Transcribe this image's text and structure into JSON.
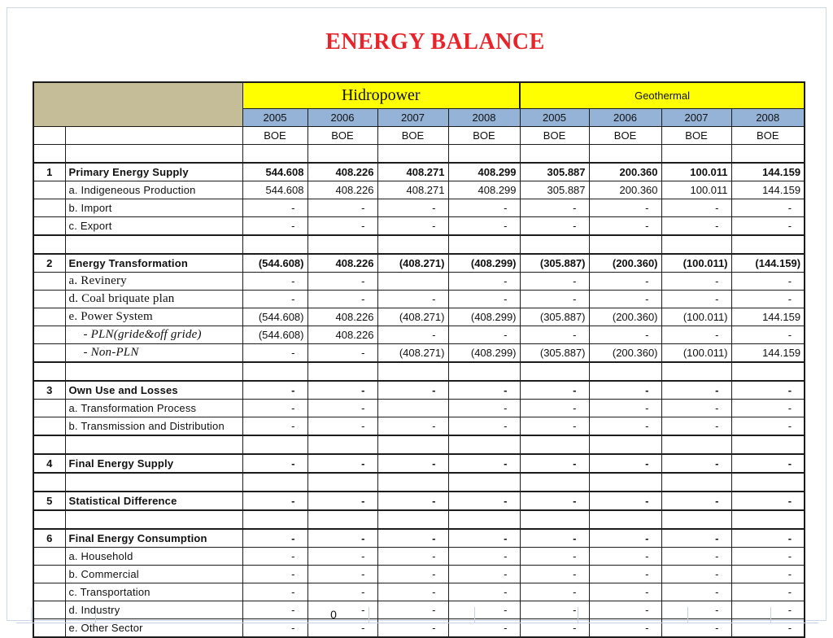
{
  "page": {
    "title": "ENERGY BALANCE"
  },
  "colors": {
    "title_red": "#e8232a",
    "band_yellow": "#ffff00",
    "band_blue": "#95b3d7",
    "corner_tan": "#c4bd97",
    "grid_light": "#c7d3e4"
  },
  "table": {
    "groups": [
      {
        "name": "Hidropower"
      },
      {
        "name": "Geothermal"
      }
    ],
    "years": [
      "2005",
      "2006",
      "2007",
      "2008",
      "2005",
      "2006",
      "2007",
      "2008"
    ],
    "units": [
      "BOE",
      "BOE",
      "BOE",
      "BOE",
      "BOE",
      "BOE",
      "BOE",
      "BOE"
    ],
    "rows": [
      {
        "type": "spacer",
        "num": "",
        "label": "",
        "values": [
          "",
          "",
          "",
          "",
          "",
          "",
          "",
          ""
        ]
      },
      {
        "type": "section",
        "num": "1",
        "label": "Primary Energy Supply",
        "values": [
          "544.608",
          "408.226",
          "408.271",
          "408.299",
          "305.887",
          "200.360",
          "100.011",
          "144.159"
        ]
      },
      {
        "type": "sub",
        "num": "",
        "label": "a. Indigeneous Production",
        "values": [
          "544.608",
          "408.226",
          "408.271",
          "408.299",
          "305.887",
          "200.360",
          "100.011",
          "144.159"
        ]
      },
      {
        "type": "sub",
        "num": "",
        "label": "b. Import",
        "values": [
          "-",
          "-",
          "-",
          "-",
          "-",
          "-",
          "-",
          "-"
        ]
      },
      {
        "type": "sub",
        "num": "",
        "label": "c. Export",
        "thick_bottom": true,
        "values": [
          "-",
          "-",
          "-",
          "-",
          "-",
          "-",
          "-",
          "-"
        ]
      },
      {
        "type": "spacer",
        "num": "",
        "label": "",
        "values": [
          "",
          "",
          "",
          "",
          "",
          "",
          "",
          ""
        ]
      },
      {
        "type": "section",
        "num": "2",
        "label": "Energy Transformation",
        "values": [
          "(544.608)",
          "408.226",
          "(408.271)",
          "(408.299)",
          "(305.887)",
          "(200.360)",
          "(100.011)",
          "(144.159)"
        ]
      },
      {
        "type": "serif",
        "num": "",
        "label": "a. Revinery",
        "values": [
          "-",
          "-",
          "",
          "-",
          "-",
          "-",
          "-",
          "-"
        ]
      },
      {
        "type": "serif",
        "num": "",
        "label": "d. Coal briquate plan",
        "values": [
          "-",
          "-",
          "-",
          "-",
          "-",
          "-",
          "-",
          "-"
        ]
      },
      {
        "type": "serif",
        "num": "",
        "label": "e. Power System",
        "values": [
          "(544.608)",
          "408.226",
          "(408.271)",
          "(408.299)",
          "(305.887)",
          "(200.360)",
          "(100.011)",
          "144.159"
        ]
      },
      {
        "type": "italic",
        "num": "",
        "label": "- PLN(gride&off gride)",
        "values": [
          "(544.608)",
          "408.226",
          "-",
          "-",
          "-",
          "-",
          "-",
          "-"
        ]
      },
      {
        "type": "italic",
        "num": "",
        "label": "- Non-PLN",
        "thick_bottom": true,
        "values": [
          "-",
          "-",
          "(408.271)",
          "(408.299)",
          "(305.887)",
          "(200.360)",
          "(100.011)",
          "144.159"
        ]
      },
      {
        "type": "spacer",
        "num": "",
        "label": "",
        "values": [
          "",
          "",
          "",
          "",
          "",
          "",
          "",
          ""
        ]
      },
      {
        "type": "section",
        "num": "3",
        "label": "Own Use and Losses",
        "values": [
          "-",
          "-",
          "-",
          "-",
          "-",
          "-",
          "-",
          "-"
        ]
      },
      {
        "type": "sub",
        "num": "",
        "label": "a. Transformation Process",
        "values": [
          "-",
          "-",
          "",
          "-",
          "-",
          "-",
          "-",
          "-"
        ]
      },
      {
        "type": "sub",
        "num": "",
        "label": "b. Transmission and Distribution",
        "thick_bottom": true,
        "values": [
          "-",
          "-",
          "-",
          "-",
          "-",
          "-",
          "-",
          "-"
        ]
      },
      {
        "type": "spacer",
        "num": "",
        "label": "",
        "values": [
          "",
          "",
          "",
          "",
          "",
          "",
          "",
          ""
        ]
      },
      {
        "type": "section",
        "num": "4",
        "label": "Final Energy Supply",
        "thick_bottom": true,
        "values": [
          "-",
          "-",
          "-",
          "-",
          "-",
          "-",
          "-",
          "-"
        ]
      },
      {
        "type": "spacer",
        "num": "",
        "label": "",
        "values": [
          "",
          "",
          "",
          "",
          "",
          "",
          "",
          ""
        ]
      },
      {
        "type": "section",
        "num": "5",
        "label": "Statistical Difference",
        "thick_bottom": true,
        "values": [
          "-",
          "-",
          "-",
          "-",
          "-",
          "-",
          "-",
          "-"
        ]
      },
      {
        "type": "spacer",
        "num": "",
        "label": "",
        "values": [
          "",
          "",
          "",
          "",
          "",
          "",
          "",
          ""
        ]
      },
      {
        "type": "section",
        "num": "6",
        "label": "Final Energy Consumption",
        "values": [
          "-",
          "-",
          "-",
          "-",
          "-",
          "-",
          "-",
          "-"
        ]
      },
      {
        "type": "sub",
        "num": "",
        "label": "a. Household",
        "values": [
          "-",
          "-",
          "-",
          "-",
          "-",
          "-",
          "-",
          "-"
        ]
      },
      {
        "type": "sub",
        "num": "",
        "label": "b. Commercial",
        "values": [
          "-",
          "-",
          "-",
          "-",
          "-",
          "-",
          "-",
          "-"
        ]
      },
      {
        "type": "sub",
        "num": "",
        "label": "c. Transportation",
        "values": [
          "-",
          "-",
          "-",
          "-",
          "-",
          "-",
          "-",
          "-"
        ]
      },
      {
        "type": "sub",
        "num": "",
        "label": "d. Industry",
        "values": [
          "-",
          "-",
          "-",
          "-",
          "-",
          "-",
          "-",
          "-"
        ]
      },
      {
        "type": "sub",
        "num": "",
        "label": "e. Other Sector",
        "thick_bottom": true,
        "values": [
          "-",
          "-",
          "-",
          "-",
          "-",
          "-",
          "-",
          "-"
        ]
      }
    ],
    "footer": {
      "value": "0"
    }
  }
}
